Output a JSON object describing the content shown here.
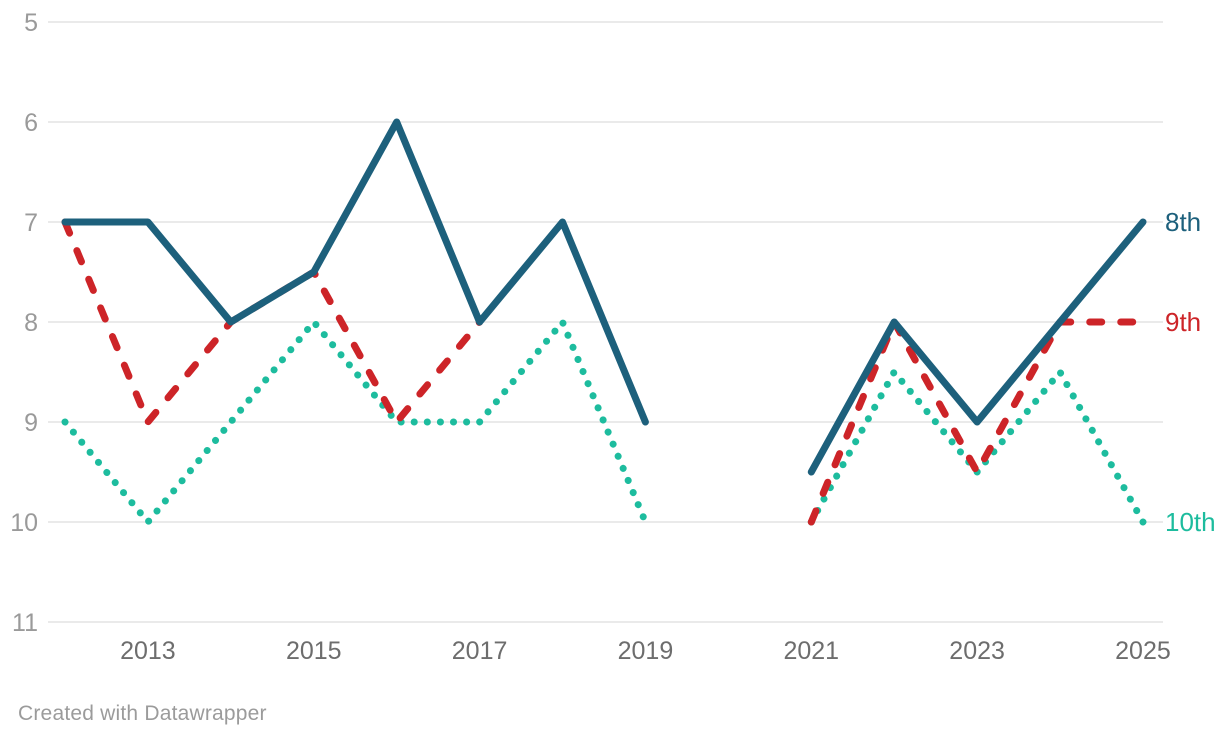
{
  "chart_data": {
    "type": "line",
    "x": [
      2012,
      2013,
      2014,
      2015,
      2016,
      2017,
      2018,
      2019,
      2020,
      2021,
      2022,
      2023,
      2024,
      2025
    ],
    "series": [
      {
        "name": "8th",
        "color": "#1d607c",
        "style": "solid",
        "values": [
          7,
          7,
          8,
          7.5,
          6,
          8,
          7,
          9,
          null,
          9.5,
          8,
          9,
          8,
          7
        ]
      },
      {
        "name": "9th",
        "color": "#cd2428",
        "style": "dashed",
        "values": [
          7,
          9,
          8,
          7.5,
          9,
          8,
          null,
          null,
          null,
          10,
          8,
          9.5,
          8,
          8
        ]
      },
      {
        "name": "10th",
        "color": "#1dbc9e",
        "style": "dotted",
        "values": [
          9,
          10,
          9,
          8,
          9,
          9,
          8,
          10,
          null,
          10,
          8.5,
          9.5,
          8.5,
          10
        ]
      }
    ],
    "y_axis": {
      "min": 5,
      "max": 11,
      "inverted": true,
      "ticks": [
        5,
        6,
        7,
        8,
        9,
        10,
        11
      ]
    },
    "x_axis": {
      "ticks": [
        2013,
        2015,
        2017,
        2019,
        2021,
        2023,
        2025
      ]
    },
    "grid": true,
    "legend_position": "right-end-labels",
    "gap_years": [
      2020
    ]
  },
  "colors": {
    "grid": "#e4e4e4",
    "y_tick_label": "#9a9a9a",
    "x_tick_label": "#6d6d6d",
    "footer_text": "#9b9b9b",
    "background": "#ffffff"
  },
  "footer": {
    "credit": "Created with Datawrapper"
  }
}
